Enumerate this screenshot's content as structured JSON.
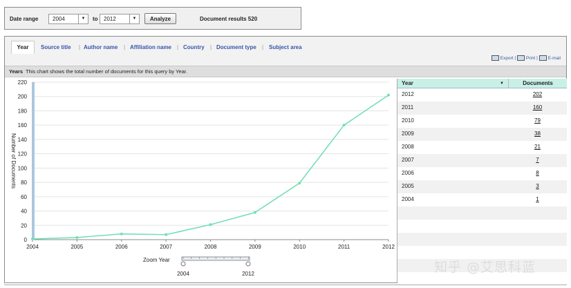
{
  "range": {
    "date_range_label": "Date range",
    "from_value": "2004",
    "to_label": "to",
    "to_value": "2012",
    "analyze_label": "Analyze",
    "results_text": "Document results 520"
  },
  "tabs": [
    {
      "label": "Year",
      "active": true
    },
    {
      "label": "Source title"
    },
    {
      "label": "Author name"
    },
    {
      "label": "Affiliation name"
    },
    {
      "label": "Country"
    },
    {
      "label": "Document type"
    },
    {
      "label": "Subject area"
    }
  ],
  "tools": {
    "export": "Export",
    "print": "Print",
    "email": "E-mail",
    "sep": "|"
  },
  "years_bar": {
    "title": "Years",
    "desc": "This chart shows the total number of documents for this query by Year."
  },
  "chart_data": {
    "type": "line",
    "x": [
      2004,
      2005,
      2006,
      2007,
      2008,
      2009,
      2010,
      2011,
      2012
    ],
    "series": [
      {
        "values": [
          1,
          3,
          8,
          7,
          21,
          38,
          79,
          160,
          202
        ]
      }
    ],
    "ylabel": "Number of Documents",
    "ylim": [
      0,
      220
    ],
    "yticks": [
      0,
      20,
      40,
      60,
      80,
      100,
      120,
      140,
      160,
      180,
      200,
      220
    ],
    "xticks": [
      "2004",
      "2005",
      "2006",
      "2007",
      "2008",
      "2009",
      "2010",
      "2011",
      "2012"
    ],
    "grid": true,
    "line_color": "#74e0b4",
    "zoom_label": "Zoom Year",
    "zoom_from": "2004",
    "zoom_to": "2012"
  },
  "table": {
    "col_year": "Year",
    "col_docs": "Documents",
    "rows": [
      {
        "year": "2012",
        "docs": "202"
      },
      {
        "year": "2011",
        "docs": "160"
      },
      {
        "year": "2010",
        "docs": "79"
      },
      {
        "year": "2009",
        "docs": "38"
      },
      {
        "year": "2008",
        "docs": "21"
      },
      {
        "year": "2007",
        "docs": "7"
      },
      {
        "year": "2006",
        "docs": "8"
      },
      {
        "year": "2005",
        "docs": "3"
      },
      {
        "year": "2004",
        "docs": "1"
      }
    ]
  },
  "watermark": "知乎 @艾思科蓝"
}
